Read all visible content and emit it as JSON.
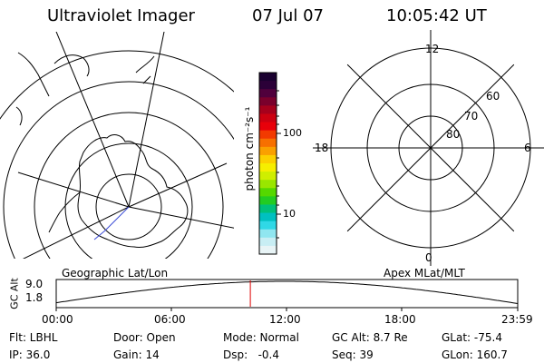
{
  "header": {
    "title": "Ultraviolet Imager",
    "date": "07 Jul 07",
    "time": "10:05:42 UT"
  },
  "left_map": {
    "label": "Geographic Lat/Lon",
    "line_color": "#000000",
    "track_color": "#3b4bd6"
  },
  "right_map": {
    "label": "Apex MLat/MLT",
    "mlt_labels": {
      "top": "12",
      "left": "18",
      "right": "6",
      "bottom": "0"
    },
    "lat_labels": [
      "60",
      "70",
      "80"
    ]
  },
  "colorbar": {
    "unit_label": "photon cm⁻²s⁻¹",
    "tick_labels": [
      "100",
      "10"
    ],
    "colors": [
      "#1a0030",
      "#2b0038",
      "#50003c",
      "#7a002c",
      "#a6001c",
      "#cc0010",
      "#e8000a",
      "#f23a00",
      "#f77000",
      "#faa000",
      "#fcd000",
      "#f6ee00",
      "#cfee00",
      "#99e600",
      "#55d800",
      "#22cc22",
      "#00c07a",
      "#00c0c0",
      "#30d8e6",
      "#90e6f0",
      "#c8eef4",
      "#e8f4f6"
    ]
  },
  "altitude_plot": {
    "ylabel": "GC Alt",
    "y_ticks": [
      "9.0",
      "1.8"
    ],
    "x_ticks": [
      "00:00",
      "06:00",
      "12:00",
      "18:00",
      "23:59"
    ],
    "current_time_hours": 10.095,
    "marker_color": "#e00000"
  },
  "status": {
    "row1": {
      "filter": "Flt: LBHL",
      "door": "Door: Open",
      "mode": "Mode: Normal",
      "gc_alt": "GC Alt: 8.7 Re",
      "glat": "GLat: -75.4"
    },
    "row2": {
      "ip": "IP: 36.0",
      "gain": "Gain: 14",
      "dsp": "Dsp:   -0.4",
      "seq": "Seq: 39",
      "glon": "GLon: 160.7"
    }
  }
}
